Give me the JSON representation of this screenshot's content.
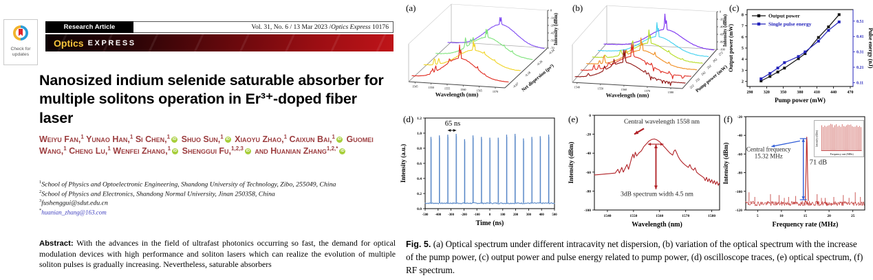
{
  "paper": {
    "badge": {
      "lines": [
        "Check for",
        "updates"
      ]
    },
    "header": {
      "article_type": "Research Article",
      "vol_prefix": "Vol. 31, No. 6 / 13 Mar 2023 / ",
      "journal": "Optics Express",
      "page_no": "10176",
      "brand_first": "Optics",
      "brand_rest": "EXPRESS"
    },
    "title": "Nanosized indium selenide saturable absorber for multiple solitons operation in Er³⁺-doped fiber laser",
    "author_color": "#9c3d3f",
    "orcid_color": "#a6ce39",
    "authors": [
      {
        "name": "Weiyu Fan,",
        "sup": "1",
        "orcid": false
      },
      {
        "name": "Yunao Han,",
        "sup": "1",
        "orcid": false
      },
      {
        "name": "Si Chen,",
        "sup": "1",
        "orcid": true
      },
      {
        "name": "Shuo Sun,",
        "sup": "1",
        "orcid": true
      },
      {
        "name": "Xiaoyu Zhao,",
        "sup": "1",
        "orcid": false
      },
      {
        "name": "Caixun Bai,",
        "sup": "1",
        "orcid": true
      },
      {
        "name": "Guomei Wang,",
        "sup": "1",
        "orcid": false
      },
      {
        "name": "Cheng Lu,",
        "sup": "1",
        "orcid": false
      },
      {
        "name": "Wenfei Zhang,",
        "sup": "1",
        "orcid": true
      },
      {
        "name": "Shenggui Fu,",
        "sup": "1,2,3",
        "orcid": true
      },
      {
        "name": "and Huanian Zhang",
        "sup": "1,2,*",
        "orcid": true
      }
    ],
    "affiliations": [
      {
        "sup": "1",
        "text": "School of Physics and Optoelectronic Engineering, Shandong University of Technology, Zibo, 255049, China",
        "email": false
      },
      {
        "sup": "2",
        "text": "School of Physics and Electronics, Shandong Normal University, Jinan 250358, China",
        "email": false
      },
      {
        "sup": "3",
        "text": "fushenggui@sdut.edu.cn",
        "email": false
      },
      {
        "sup": "*",
        "text": "huanian_zhang@163.com",
        "email": true
      }
    ],
    "abstract_label": "Abstract:",
    "abstract_text": "With the advances in the field of ultrafast photonics occurring so fast, the demand for optical modulation devices with high performance and soliton lasers which can realize the evolution of multiple soliton pulses is gradually increasing. Nevertheless, saturable absorbers"
  },
  "figure_caption": {
    "label": "Fig. 5.",
    "text": "(a) Optical spectrum under different intracavity net dispersion, (b) variation of the optical spectrum with the increase of the pump power, (c) output power and pulse energy related to pump power, (d) oscilloscope traces, (e) optical spectrum, (f) RF spectrum."
  },
  "chart_data": [
    {
      "id": "a",
      "type": "line",
      "variant": "waterfall3d",
      "panel_label": "(a)",
      "xlabel": "Wavelength (nm)",
      "x_ticks": [
        1545,
        1550,
        1555,
        1560,
        1565,
        1570
      ],
      "x_range": [
        1543,
        1573
      ],
      "zlabel": "Intensity (dBm)",
      "z_ticks": [
        0,
        -14,
        -28,
        -42,
        -56,
        -70
      ],
      "depth_label": "Net dispersion (ps²)",
      "series": [
        {
          "label": "-0.07",
          "color": "#e02a1f",
          "hump": 0.58,
          "center": 0.5,
          "width": 0.16,
          "main_spike": 0.42,
          "side_spikes": true,
          "noisy": false
        },
        {
          "label": "-0.18",
          "color": "#f0d322",
          "hump": 0.5,
          "center": 0.52,
          "width": 0.17,
          "main_spike": 0.3,
          "side_spikes": true,
          "noisy": false
        },
        {
          "label": "-0.26",
          "color": "#7de37a",
          "hump": 0.55,
          "center": 0.53,
          "width": 0.17,
          "main_spike": 0.28,
          "side_spikes": true,
          "noisy": false
        },
        {
          "label": "-0.34",
          "color": "#7e49f2",
          "hump": 0.6,
          "center": 0.55,
          "width": 0.16,
          "main_spike": 0.25,
          "side_spikes": false,
          "noisy": false
        }
      ]
    },
    {
      "id": "b",
      "type": "line",
      "variant": "waterfall3d",
      "panel_label": "(b)",
      "xlabel": "Wavelength (nm)",
      "x_ticks": [
        1540,
        1550,
        1560,
        1570,
        1580
      ],
      "x_range": [
        1538,
        1585
      ],
      "zlabel": "Intensity (dBm)",
      "z_ticks": [
        0,
        -20,
        -40,
        -60,
        -80,
        -100
      ],
      "depth_label": "Pump power (mW)",
      "series": [
        {
          "label": "222",
          "color": "#8f1210",
          "hump": 0.5,
          "center": 0.45,
          "width": 0.15,
          "main_spike": 0.45,
          "side_spikes": true,
          "noisy": true
        },
        {
          "label": "232",
          "color": "#e02a1f",
          "hump": 0.48,
          "center": 0.47,
          "width": 0.15,
          "main_spike": 0.45,
          "side_spikes": true,
          "noisy": true
        },
        {
          "label": "242",
          "color": "#f08b1c",
          "hump": 0.48,
          "center": 0.5,
          "width": 0.15,
          "main_spike": 0.4,
          "side_spikes": true,
          "noisy": false
        },
        {
          "label": "252",
          "color": "#b5dc20",
          "hump": 0.5,
          "center": 0.52,
          "width": 0.15,
          "main_spike": 0.42,
          "side_spikes": true,
          "noisy": false
        },
        {
          "label": "262",
          "color": "#3ed0f0",
          "hump": 0.5,
          "center": 0.54,
          "width": 0.15,
          "main_spike": 0.45,
          "side_spikes": false,
          "noisy": false
        },
        {
          "label": "272",
          "color": "#7a2ff0",
          "hump": 0.52,
          "center": 0.56,
          "width": 0.15,
          "main_spike": 0.5,
          "side_spikes": false,
          "noisy": false
        }
      ]
    },
    {
      "id": "c",
      "type": "line",
      "variant": "dual_axis",
      "panel_label": "(c)",
      "xlabel": "Pump power (mW)",
      "x_ticks": [
        290,
        320,
        350,
        380,
        410,
        440,
        470
      ],
      "x_range": [
        285,
        475
      ],
      "ylabel_left": "Output power (mW)",
      "y_ticks_left": [
        2,
        3,
        4,
        5,
        6,
        7,
        8
      ],
      "y_range_left": [
        1.55,
        8.45
      ],
      "ylabel_right": "Pulse energy (nJ)",
      "y_ticks_right": [
        0.11,
        0.21,
        0.31,
        0.41,
        0.51
      ],
      "y_range_right": [
        0.085,
        0.585
      ],
      "legend": [
        {
          "label": "Output power",
          "color": "#111111"
        },
        {
          "label": "Single pulse energy",
          "color": "#2323bb"
        }
      ],
      "x": [
        310,
        326,
        340,
        352,
        377,
        389,
        413,
        431,
        450
      ],
      "series": [
        {
          "name": "Output power",
          "axis": "left",
          "values": [
            2.05,
            2.45,
            2.85,
            3.2,
            4.05,
            4.5,
            5.95,
            6.9,
            8.0
          ]
        },
        {
          "name": "Single pulse energy",
          "axis": "right",
          "values": [
            0.135,
            0.17,
            0.205,
            0.24,
            0.28,
            0.31,
            0.38,
            0.45,
            0.505
          ]
        }
      ]
    },
    {
      "id": "d",
      "type": "line",
      "variant": "pulse_train",
      "panel_label": "(d)",
      "xlabel": "Time (ns)",
      "x_ticks": [
        -500,
        -400,
        -300,
        -200,
        -100,
        0,
        100,
        200,
        300,
        400,
        500
      ],
      "x_range": [
        -500,
        500
      ],
      "ylabel": "Intensity (a.u.)",
      "y_tick_labels": [
        "0.0",
        "0.2",
        "0.4",
        "0.6",
        "0.8",
        "1.0",
        "1.2"
      ],
      "y_range": [
        0,
        1.2
      ],
      "period_label": "65 ns",
      "period_ns": 65,
      "baseline": 0.075,
      "pulse_positions": [
        -455,
        -390,
        -325,
        -260,
        -195,
        -130,
        -65,
        0,
        65,
        130,
        195,
        260,
        325,
        390,
        455
      ],
      "pulse_heights": [
        0.95,
        0.97,
        0.98,
        0.99,
        0.92,
        0.97,
        0.95,
        0.94,
        0.94,
        0.98,
        0.99,
        0.93,
        0.95,
        0.96,
        0.98
      ],
      "color": "#4d7fc4"
    },
    {
      "id": "e",
      "type": "line",
      "variant": "optical_spectrum",
      "panel_label": "(e)",
      "xlabel": "Wavelength (nm)",
      "x_ticks": [
        1540,
        1550,
        1560,
        1570,
        1580
      ],
      "x_range": [
        1535,
        1583
      ],
      "ylabel": "Intensity (dBm)",
      "y_ticks": [
        0,
        -20,
        -40,
        -60,
        -80,
        -100
      ],
      "y_range": [
        0,
        -100
      ],
      "color": "#b02025",
      "annotation_top": "Central wavelength 1558 nm",
      "annotation_bottom": "3dB spectrum width 4.5 nm",
      "central_wavelength_nm": 1558,
      "bandwidth_3db_nm": 4.5,
      "points": [
        [
          1535,
          -63
        ],
        [
          1537,
          -62.5
        ],
        [
          1539,
          -62
        ],
        [
          1541,
          -61.5
        ],
        [
          1543,
          -61
        ],
        [
          1544,
          -57
        ],
        [
          1544.6,
          -61
        ],
        [
          1545.5,
          -55
        ],
        [
          1546.1,
          -60
        ],
        [
          1547.5,
          -52
        ],
        [
          1548.1,
          -57
        ],
        [
          1549.3,
          -45
        ],
        [
          1549.8,
          -41
        ],
        [
          1550.2,
          -45
        ],
        [
          1550.7,
          -39
        ],
        [
          1551.2,
          -43
        ],
        [
          1552,
          -40
        ],
        [
          1553,
          -37.5
        ],
        [
          1554,
          -33
        ],
        [
          1555,
          -30
        ],
        [
          1556,
          -27
        ],
        [
          1557,
          -25.5
        ],
        [
          1558,
          -25
        ],
        [
          1559,
          -26
        ],
        [
          1560,
          -28
        ],
        [
          1561,
          -31
        ],
        [
          1562,
          -34
        ],
        [
          1563,
          -37
        ],
        [
          1564,
          -40
        ],
        [
          1565,
          -42
        ],
        [
          1565.5,
          -38
        ],
        [
          1566,
          -36.5
        ],
        [
          1566.6,
          -40
        ],
        [
          1567.2,
          -44
        ],
        [
          1568,
          -47.5
        ],
        [
          1569,
          -50.5
        ],
        [
          1570,
          -53
        ],
        [
          1571,
          -55
        ],
        [
          1571.6,
          -52
        ],
        [
          1572.2,
          -56
        ],
        [
          1573,
          -58
        ],
        [
          1573.6,
          -55.5
        ],
        [
          1574.2,
          -60
        ],
        [
          1575,
          -62
        ],
        [
          1576,
          -64
        ],
        [
          1577,
          -66
        ],
        [
          1577.5,
          -69
        ],
        [
          1578,
          -65.5
        ],
        [
          1578.5,
          -70
        ],
        [
          1579,
          -67
        ],
        [
          1579.5,
          -71
        ],
        [
          1580,
          -68
        ],
        [
          1580.5,
          -72
        ],
        [
          1581,
          -69
        ],
        [
          1581.5,
          -73
        ],
        [
          1582,
          -70
        ],
        [
          1582.5,
          -74
        ],
        [
          1583,
          -71
        ]
      ]
    },
    {
      "id": "f",
      "type": "line",
      "variant": "rf_spectrum",
      "panel_label": "(f)",
      "xlabel": "Frequency rate (MHz)",
      "x_ticks": [
        5,
        10,
        15,
        20,
        25
      ],
      "x_range": [
        2.5,
        27.5
      ],
      "ylabel": "Intensity (dBm)",
      "y_ticks": [
        -20,
        -40,
        -60,
        -80,
        -100,
        -120
      ],
      "y_range": [
        -20,
        -120
      ],
      "color": "#bf3330",
      "arrow_color": "#2e5bd7",
      "central_frequency_label": "Central frequency",
      "central_frequency_value": "15.32 MHz",
      "snr_label": "71 dB",
      "peak_mhz": 15.32,
      "peak_dbm": -42,
      "noise_floor_dbm": -113,
      "spurs": [
        [
          3.2,
          -101
        ],
        [
          4.4,
          -106
        ],
        [
          7.7,
          -103
        ],
        [
          9.5,
          -104
        ],
        [
          10.6,
          -107
        ],
        [
          11.5,
          -106
        ],
        [
          13,
          -105
        ],
        [
          17.5,
          -103
        ],
        [
          18.4,
          -107
        ],
        [
          19.2,
          -107
        ],
        [
          21,
          -106
        ],
        [
          23,
          -104
        ],
        [
          24.2,
          -107
        ],
        [
          25.5,
          -101
        ],
        [
          26.6,
          -106
        ]
      ],
      "inset": {
        "ylabel": "Intensity (dBm)",
        "xlabel": "Frequency rate (MHz)",
        "lines": 28
      }
    }
  ]
}
